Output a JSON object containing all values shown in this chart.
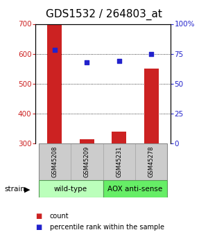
{
  "title": "GDS1532 / 264803_at",
  "samples": [
    "GSM45208",
    "GSM45209",
    "GSM45231",
    "GSM45278"
  ],
  "bar_values": [
    700,
    315,
    340,
    550
  ],
  "percentile_values": [
    78,
    68,
    69,
    75
  ],
  "ylim_left": [
    300,
    700
  ],
  "ylim_right": [
    0,
    100
  ],
  "yticks_left": [
    300,
    400,
    500,
    600,
    700
  ],
  "yticks_right": [
    0,
    25,
    50,
    75,
    100
  ],
  "ytick_labels_right": [
    "0",
    "25",
    "50",
    "75",
    "100%"
  ],
  "bar_color": "#cc2222",
  "dot_color": "#2222cc",
  "bg_color": "#ffffff",
  "group_labels": [
    "wild-type",
    "AOX anti-sense"
  ],
  "group_ranges": [
    [
      0,
      2
    ],
    [
      2,
      4
    ]
  ],
  "group_colors": [
    "#bbffbb",
    "#66ee66"
  ],
  "sample_box_color": "#cccccc",
  "title_fontsize": 11,
  "axis_label_color_left": "#cc2222",
  "axis_label_color_right": "#2222cc"
}
